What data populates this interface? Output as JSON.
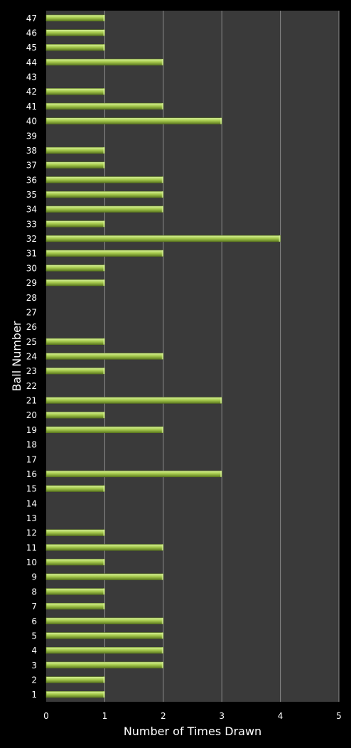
{
  "chart_data": {
    "type": "bar",
    "orientation": "horizontal",
    "title": "",
    "xlabel": "Number of Times Drawn",
    "ylabel": "Ball Number",
    "xlim": [
      0,
      5
    ],
    "xticks": [
      0,
      1,
      2,
      3,
      4,
      5
    ],
    "grid": "vertical",
    "categories": [
      "1",
      "2",
      "3",
      "4",
      "5",
      "6",
      "7",
      "8",
      "9",
      "10",
      "11",
      "12",
      "13",
      "14",
      "15",
      "16",
      "17",
      "18",
      "19",
      "20",
      "21",
      "22",
      "23",
      "24",
      "25",
      "26",
      "27",
      "28",
      "29",
      "30",
      "31",
      "32",
      "33",
      "34",
      "35",
      "36",
      "37",
      "38",
      "39",
      "40",
      "41",
      "42",
      "43",
      "44",
      "45",
      "46",
      "47"
    ],
    "values": [
      1,
      1,
      2,
      2,
      2,
      2,
      1,
      1,
      2,
      1,
      2,
      1,
      0,
      0,
      1,
      3,
      0,
      0,
      2,
      1,
      3,
      0,
      1,
      2,
      1,
      0,
      0,
      0,
      1,
      1,
      2,
      4,
      1,
      2,
      2,
      2,
      1,
      1,
      0,
      3,
      2,
      1,
      0,
      2,
      1,
      1,
      1
    ],
    "colors": {
      "background": "#000000",
      "plot_area": "#3a3a3a",
      "grid": "#8c8c8c",
      "bar_light": "#d9f29b",
      "bar_mid": "#a8cc4f",
      "bar_dark": "#5d7a1f",
      "text": "#ffffff"
    }
  }
}
